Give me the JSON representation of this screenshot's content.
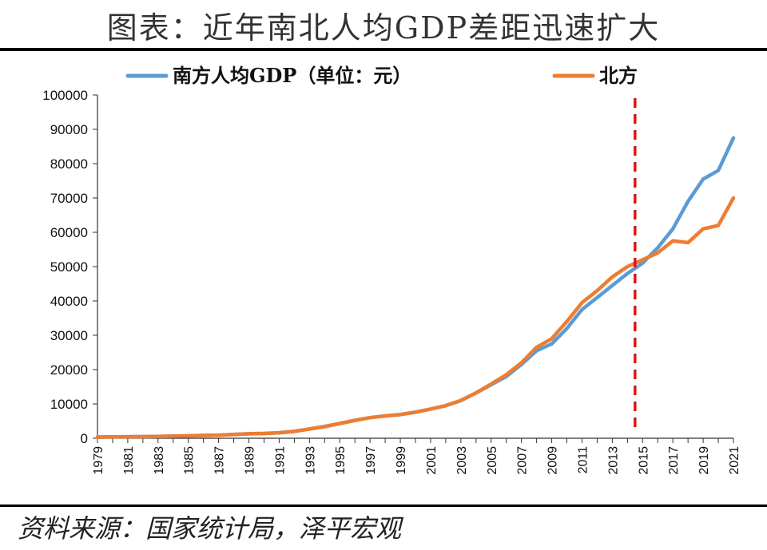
{
  "page": {
    "title": "图表：近年南北人均GDP差距迅速扩大",
    "source": "资料来源：国家统计局，泽平宏观"
  },
  "chart_data": {
    "type": "line",
    "title": "",
    "xlabel": "",
    "ylabel": "",
    "ylim": [
      0,
      100000
    ],
    "ytick_step": 10000,
    "grid": false,
    "legend_position": "top",
    "x": [
      1979,
      1980,
      1981,
      1982,
      1983,
      1984,
      1985,
      1986,
      1987,
      1988,
      1989,
      1990,
      1991,
      1992,
      1993,
      1994,
      1995,
      1996,
      1997,
      1998,
      1999,
      2000,
      2001,
      2002,
      2003,
      2004,
      2005,
      2006,
      2007,
      2008,
      2009,
      2010,
      2011,
      2012,
      2013,
      2014,
      2015,
      2016,
      2017,
      2018,
      2019,
      2020,
      2021
    ],
    "x_tick_labels": [
      "1979",
      "1981",
      "1983",
      "1985",
      "1987",
      "1989",
      "1991",
      "1993",
      "1995",
      "1997",
      "1999",
      "2001",
      "2003",
      "2005",
      "2007",
      "2009",
      "2011",
      "2013",
      "2015",
      "2017",
      "2019",
      "2021"
    ],
    "series": [
      {
        "name": "南方人均GDP（单位：元）",
        "color": "#5b9bd5",
        "values": [
          350,
          400,
          430,
          470,
          520,
          600,
          700,
          800,
          900,
          1100,
          1300,
          1400,
          1600,
          2000,
          2700,
          3400,
          4300,
          5200,
          6000,
          6500,
          6900,
          7600,
          8500,
          9500,
          11000,
          13200,
          15600,
          18000,
          21500,
          25500,
          27500,
          32000,
          37500,
          41000,
          44500,
          48000,
          51000,
          55500,
          61000,
          69000,
          75500,
          78000,
          87500
        ]
      },
      {
        "name": "北方",
        "color": "#ed7d31",
        "values": [
          350,
          400,
          430,
          470,
          520,
          600,
          700,
          800,
          900,
          1100,
          1300,
          1400,
          1600,
          2000,
          2700,
          3400,
          4300,
          5200,
          6000,
          6500,
          6900,
          7600,
          8500,
          9500,
          11000,
          13200,
          15800,
          18500,
          22000,
          26500,
          29000,
          34000,
          39500,
          43000,
          47000,
          50000,
          52000,
          54000,
          57500,
          57000,
          61000,
          62000,
          70000
        ]
      }
    ],
    "reference_line": {
      "x": 2014.5,
      "color": "#e0141e",
      "style": "dashed"
    }
  }
}
